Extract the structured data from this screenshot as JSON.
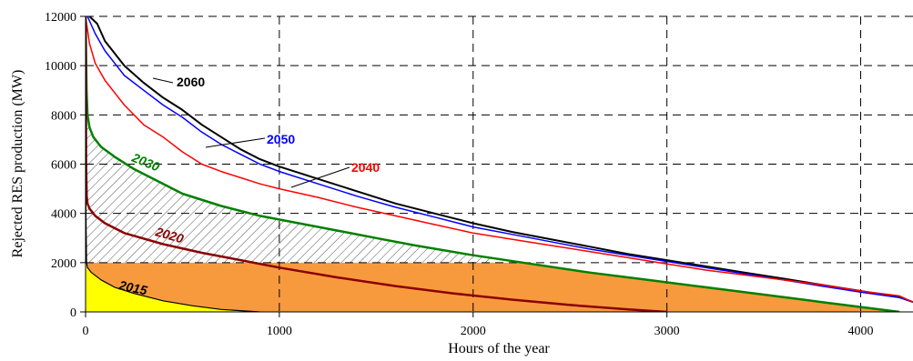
{
  "chart_data": {
    "type": "line",
    "title": "",
    "xlabel": "Hours of the year",
    "ylabel": "Rejected RES production  (MW)",
    "xlim": [
      0,
      4270
    ],
    "ylim": [
      0,
      12000
    ],
    "x_ticks": [
      0,
      1000,
      2000,
      3000,
      4000
    ],
    "y_ticks": [
      0,
      2000,
      4000,
      6000,
      8000,
      10000,
      12000
    ],
    "grid": "dashed",
    "fill_threshold": 2000,
    "colors": {
      "fill_below_2015": "#ffff00",
      "fill_orange": "#f79a3e",
      "hatch": "#555555"
    },
    "series": [
      {
        "name": "2060",
        "color": "#000000",
        "width": 2,
        "x": [
          20,
          60,
          100,
          200,
          300,
          400,
          500,
          600,
          700,
          800,
          900,
          1000,
          1200,
          1400,
          1600,
          1800,
          2000,
          2200,
          2400,
          2600,
          2800,
          3000,
          3200,
          3400,
          3600,
          3800,
          4000,
          4200,
          4270
        ],
        "y": [
          12000,
          11700,
          11000,
          10000,
          9300,
          8700,
          8200,
          7600,
          7100,
          6600,
          6200,
          5900,
          5400,
          4900,
          4400,
          4000,
          3600,
          3250,
          2950,
          2650,
          2350,
          2100,
          1850,
          1600,
          1350,
          1100,
          850,
          600,
          400
        ]
      },
      {
        "name": "2050",
        "color": "#0000ff",
        "width": 1.5,
        "x": [
          10,
          50,
          100,
          200,
          300,
          400,
          500,
          600,
          700,
          800,
          900,
          1000,
          1200,
          1400,
          1600,
          1800,
          2000,
          2200,
          2400,
          2600,
          2800,
          3000,
          3200,
          3400,
          3600,
          3800,
          4000,
          4200,
          4270
        ],
        "y": [
          12000,
          11300,
          10600,
          9600,
          9000,
          8400,
          7900,
          7300,
          6800,
          6400,
          6000,
          5700,
          5200,
          4700,
          4250,
          3850,
          3450,
          3150,
          2850,
          2550,
          2300,
          2050,
          1800,
          1550,
          1300,
          1050,
          800,
          580,
          400
        ]
      },
      {
        "name": "2040",
        "color": "#ff0000",
        "width": 1.5,
        "x": [
          0,
          20,
          50,
          100,
          200,
          300,
          400,
          500,
          600,
          700,
          800,
          900,
          1000,
          1200,
          1400,
          1600,
          1800,
          2000,
          2200,
          2400,
          2600,
          2800,
          3000,
          3200,
          3400,
          3600,
          3800,
          4000,
          4200,
          4270
        ],
        "y": [
          12000,
          10900,
          10100,
          9400,
          8400,
          7600,
          7100,
          6500,
          6000,
          5700,
          5450,
          5200,
          5000,
          4650,
          4250,
          3900,
          3550,
          3200,
          2950,
          2700,
          2450,
          2200,
          1950,
          1700,
          1500,
          1300,
          1100,
          850,
          650,
          400
        ]
      },
      {
        "name": "2030",
        "color": "#008000",
        "width": 2.5,
        "x": [
          0,
          5,
          10,
          20,
          40,
          80,
          150,
          250,
          350,
          500,
          700,
          900,
          1100,
          1300,
          1500,
          1700,
          2000,
          2300,
          2600,
          2900,
          3200,
          3500,
          3800,
          4000,
          4200
        ],
        "y": [
          12000,
          9000,
          8000,
          7500,
          7100,
          6700,
          6300,
          5800,
          5400,
          4800,
          4300,
          3900,
          3600,
          3300,
          3000,
          2700,
          2300,
          1950,
          1600,
          1300,
          1000,
          700,
          400,
          200,
          0
        ]
      },
      {
        "name": "2020",
        "color": "#8b0000",
        "width": 2.5,
        "x": [
          0,
          3,
          6,
          10,
          20,
          50,
          100,
          200,
          400,
          600,
          800,
          1000,
          1300,
          1600,
          1900,
          2200,
          2500,
          2800,
          3000
        ],
        "y": [
          12000,
          6000,
          4700,
          4400,
          4200,
          3900,
          3600,
          3200,
          2750,
          2400,
          2100,
          1800,
          1400,
          1050,
          750,
          500,
          280,
          100,
          0
        ]
      },
      {
        "name": "2015",
        "color": "#000000",
        "width": 1.2,
        "x": [
          0,
          2,
          5,
          10,
          30,
          80,
          150,
          250,
          400,
          550,
          700,
          900
        ],
        "y": [
          12000,
          4000,
          2000,
          1800,
          1600,
          1300,
          1000,
          750,
          450,
          250,
          100,
          0
        ]
      }
    ],
    "labels": [
      {
        "text": "2060",
        "color": "#000000"
      },
      {
        "text": "2050",
        "color": "#0000ff"
      },
      {
        "text": "2040",
        "color": "#ff0000"
      },
      {
        "text": "2030",
        "color": "#008000"
      },
      {
        "text": "2020",
        "color": "#8b0000"
      },
      {
        "text": "2015",
        "color": "#000000"
      }
    ]
  }
}
